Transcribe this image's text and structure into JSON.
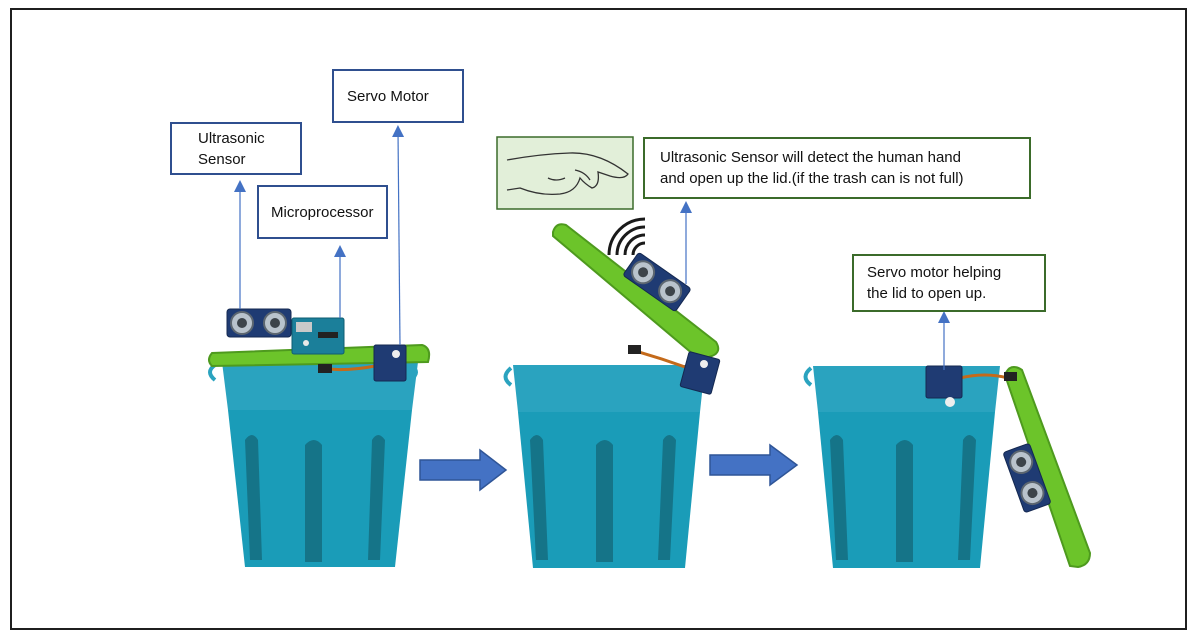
{
  "labels": {
    "ultrasonic_sensor": "Ultrasonic\nSensor",
    "microprocessor": "Microprocessor",
    "servo_motor": "Servo Motor",
    "detect_note": "Ultrasonic Sensor will detect the human hand\nand open up the lid.(if the trash can is not full)",
    "servo_note": "Servo motor helping\nthe lid to open up."
  },
  "colors": {
    "bin_top": "#2aa3bf",
    "bin_body": "#1a9cb8",
    "bin_stripe": "#157488",
    "lid": "#6cc42a",
    "lid_dark": "#4e9a1e",
    "arrow": "#4472c4",
    "label_border_blue": "#2f4f8f",
    "label_border_green": "#3b6b2a",
    "hand_box_fill": "#e2efd9"
  },
  "icons": [
    "ultrasonic-sensor-icon",
    "arduino-board-icon",
    "servo-motor-icon",
    "hand-icon",
    "signal-waves-icon",
    "trash-bin-icon",
    "flow-arrow-icon"
  ]
}
